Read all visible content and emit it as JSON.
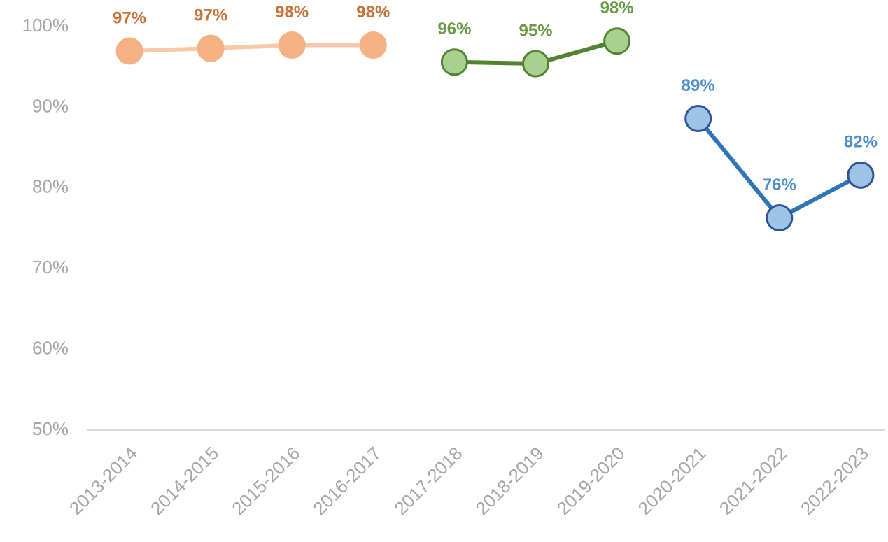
{
  "chart_data": {
    "type": "line",
    "categories": [
      "2013-2014",
      "2014-2015",
      "2015-2016",
      "2016-2017",
      "2017-2018",
      "2018-2019",
      "2019-2020",
      "2020-2021",
      "2021-2022",
      "2022-2023"
    ],
    "series": [
      {
        "color": "#f8c9a8",
        "marker_color": "#f4b183",
        "marker_stroke": "#f4b183",
        "label_color": "#c9733a",
        "values": [
          96.97,
          97.3,
          97.7,
          97.7,
          null,
          null,
          null,
          null,
          null,
          null
        ],
        "value_labels": [
          "97%",
          "97%",
          "98%",
          "98%",
          null,
          null,
          null,
          null,
          null,
          null
        ]
      },
      {
        "color": "#548235",
        "marker_color": "#a9d18e",
        "marker_stroke": "#548235",
        "label_color": "#6a9a45",
        "values": [
          null,
          null,
          null,
          null,
          95.6,
          95.4,
          98.2,
          null,
          null,
          null
        ],
        "value_labels": [
          null,
          null,
          null,
          null,
          "96%",
          "95%",
          "98%",
          null,
          null,
          null
        ]
      },
      {
        "color": "#2e75b6",
        "marker_color": "#9dc3e6",
        "marker_stroke": "#2f5597",
        "label_color": "#4f8fd0",
        "values": [
          null,
          null,
          null,
          null,
          null,
          null,
          null,
          88.6,
          76.3,
          81.6
        ],
        "value_labels": [
          null,
          null,
          null,
          null,
          null,
          null,
          null,
          "89%",
          "76%",
          "82%"
        ]
      }
    ],
    "ylim": [
      50,
      100
    ],
    "yticks": [
      {
        "value": 50,
        "label": "50%"
      },
      {
        "value": 60,
        "label": "60%"
      },
      {
        "value": 70,
        "label": "70%"
      },
      {
        "value": 80,
        "label": "80%"
      },
      {
        "value": 90,
        "label": "90%"
      },
      {
        "value": 100,
        "label": "100%"
      }
    ]
  }
}
